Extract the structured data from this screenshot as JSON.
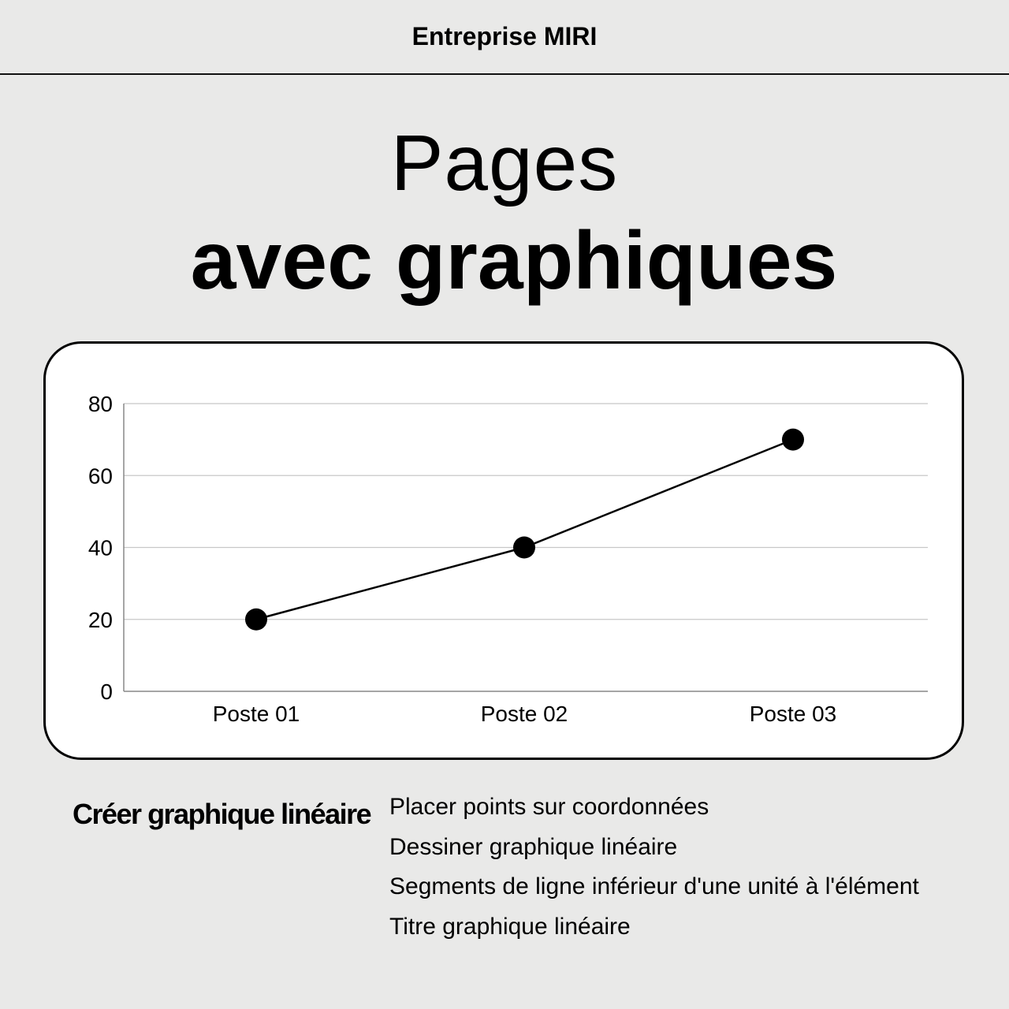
{
  "header": {
    "brand": "Entreprise MIRI"
  },
  "title": {
    "line1": "Pages",
    "line2": "avec graphiques"
  },
  "chart_data": {
    "type": "line",
    "categories": [
      "Poste 01",
      "Poste 02",
      "Poste 03"
    ],
    "values": [
      20,
      40,
      70
    ],
    "ylim": [
      0,
      80
    ],
    "yticks": [
      0,
      20,
      40,
      60,
      80
    ],
    "grid": true,
    "title": "",
    "xlabel": "",
    "ylabel": "",
    "color": "#000000"
  },
  "footer": {
    "subtitle": "Créer graphique linéaire",
    "items": [
      "Placer points sur coordonnées",
      "Dessiner graphique linéaire",
      "Segments de ligne inférieur d'une unité à l'élément",
      "Titre graphique linéaire"
    ]
  }
}
